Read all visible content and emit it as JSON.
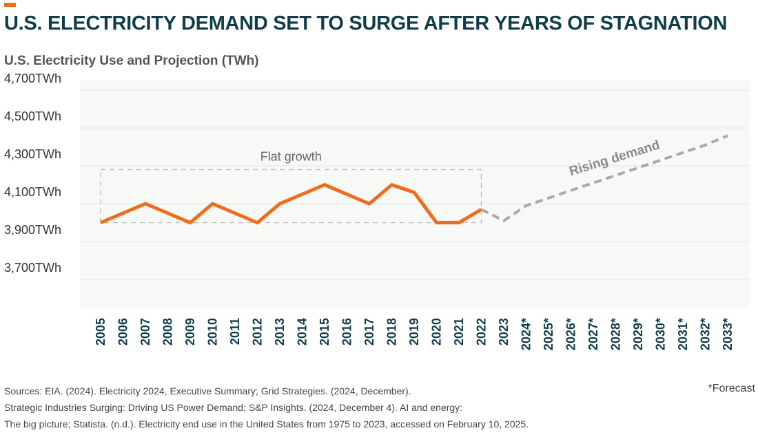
{
  "header": {
    "title": "U.S. ELECTRICITY DEMAND SET TO SURGE AFTER YEARS OF STAGNATION",
    "subtitle": "U.S. Electricity Use and Projection (TWh)"
  },
  "colors": {
    "accent": "#f26b1d",
    "actual_line": "#f26b1d",
    "forecast_line": "#a9a9a9",
    "plot_background": "#f7f9f7",
    "title": "#0f3d4a"
  },
  "chart_data": {
    "type": "line",
    "title": "U.S. Electricity Use and Projection (TWh)",
    "ylim": [
      3500,
      4800
    ],
    "yticks": [
      3700,
      3900,
      4100,
      4300,
      4500,
      4700
    ],
    "ytick_labels": [
      "3,700TWh",
      "3,900TWh",
      "4,100TWh",
      "4,300TWh",
      "4,500TWh",
      "4,700TWh"
    ],
    "categories": [
      "2005",
      "2006",
      "2007",
      "2008",
      "2009",
      "2010",
      "2011",
      "2012",
      "2013",
      "2014",
      "2015",
      "2016",
      "2017",
      "2018",
      "2019",
      "2020",
      "2021",
      "2022",
      "2023",
      "2024*",
      "2025*",
      "2026*",
      "2027*",
      "2028*",
      "2029*",
      "2030*",
      "2031*",
      "2032*",
      "2033*"
    ],
    "series": [
      {
        "style": "solid",
        "color": "#f26b1d",
        "x": [
          "2005",
          "2006",
          "2007",
          "2008",
          "2009",
          "2010",
          "2011",
          "2012",
          "2013",
          "2014",
          "2015",
          "2016",
          "2017",
          "2018",
          "2019",
          "2020",
          "2021",
          "2022"
        ],
        "values": [
          4000,
          4050,
          4100,
          4050,
          4000,
          4100,
          4050,
          4000,
          4100,
          4150,
          4200,
          4150,
          4100,
          4200,
          4160,
          4000,
          4000,
          4070
        ]
      },
      {
        "style": "dashed",
        "color": "#a9a9a9",
        "x": [
          "2022",
          "2023",
          "2024*",
          "2025*",
          "2026*",
          "2027*",
          "2028*",
          "2029*",
          "2030*",
          "2031*",
          "2032*",
          "2033*"
        ],
        "values": [
          4070,
          4010,
          4090,
          4130,
          4170,
          4210,
          4250,
          4290,
          4330,
          4370,
          4410,
          4460
        ]
      }
    ],
    "annotations": [
      {
        "text": "Flat growth",
        "x_range": [
          "2005",
          "2022"
        ],
        "y_range": [
          4000,
          4280
        ]
      },
      {
        "text": "Rising demand",
        "x": "2028*",
        "y": 4320
      }
    ]
  },
  "footer": {
    "sources": [
      "Sources: EIA. (2024). Electricity 2024, Executive Summary; Grid Strategies. (2024, December).",
      "Strategic Industries Surging: Driving US Power Demand; S&P Insights. (2024, December 4). AI and energy:",
      "The big picture; Statista. (n.d.). Electricity end use in the United States from 1975 to 2023, accessed on February 10, 2025."
    ],
    "forecast_note": "*Forecast"
  }
}
